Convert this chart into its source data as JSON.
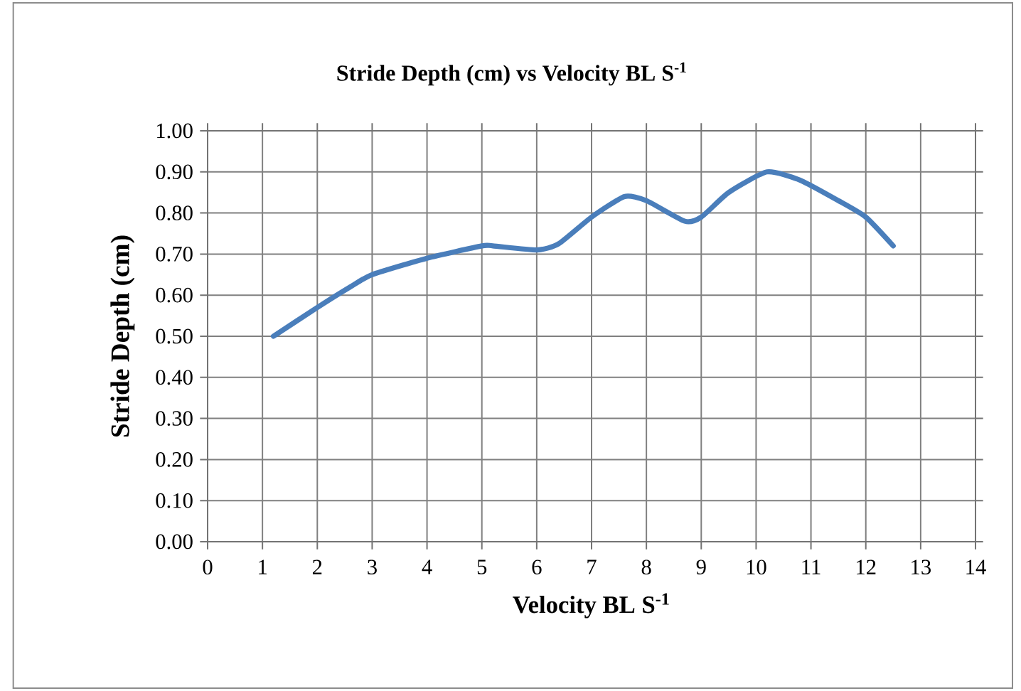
{
  "chart_data": {
    "type": "line",
    "title": "Stride Depth (cm) vs Velocity BL S$^{-1}$",
    "xlabel": "Velocity BL S$^{-1}$",
    "ylabel": "Stride Depth (cm)",
    "series": [
      {
        "color": "#4a7ebb",
        "x": [
          1.2,
          2.0,
          2.6,
          3.0,
          4.0,
          5.0,
          5.2,
          6.0,
          6.4,
          7.0,
          7.6,
          8.0,
          8.7,
          9.0,
          9.5,
          10.2,
          10.8,
          11.5,
          12.0,
          12.5
        ],
        "values": [
          0.5,
          0.57,
          0.62,
          0.65,
          0.69,
          0.72,
          0.72,
          0.71,
          0.725,
          0.79,
          0.84,
          0.83,
          0.78,
          0.79,
          0.85,
          0.9,
          0.88,
          0.83,
          0.79,
          0.72
        ]
      }
    ],
    "xlim": [
      0,
      14
    ],
    "xticks": [
      0,
      1,
      2,
      3,
      4,
      5,
      6,
      7,
      8,
      9,
      10,
      11,
      12,
      13,
      14
    ],
    "ylim": [
      0,
      1
    ],
    "yticks": [
      {
        "value": 0,
        "label": "0.00"
      },
      {
        "value": 0.1,
        "label": "0.10"
      },
      {
        "value": 0.2,
        "label": "0.20"
      },
      {
        "value": 0.3,
        "label": "0.30"
      },
      {
        "value": 0.4,
        "label": "0.40"
      },
      {
        "value": 0.5,
        "label": "0.50"
      },
      {
        "value": 0.6,
        "label": "0.60"
      },
      {
        "value": 0.7,
        "label": "0.70"
      },
      {
        "value": 0.8,
        "label": "0.80"
      },
      {
        "value": 0.9,
        "label": "0.90"
      },
      {
        "value": 1,
        "label": "1.00"
      }
    ],
    "grid": true
  }
}
